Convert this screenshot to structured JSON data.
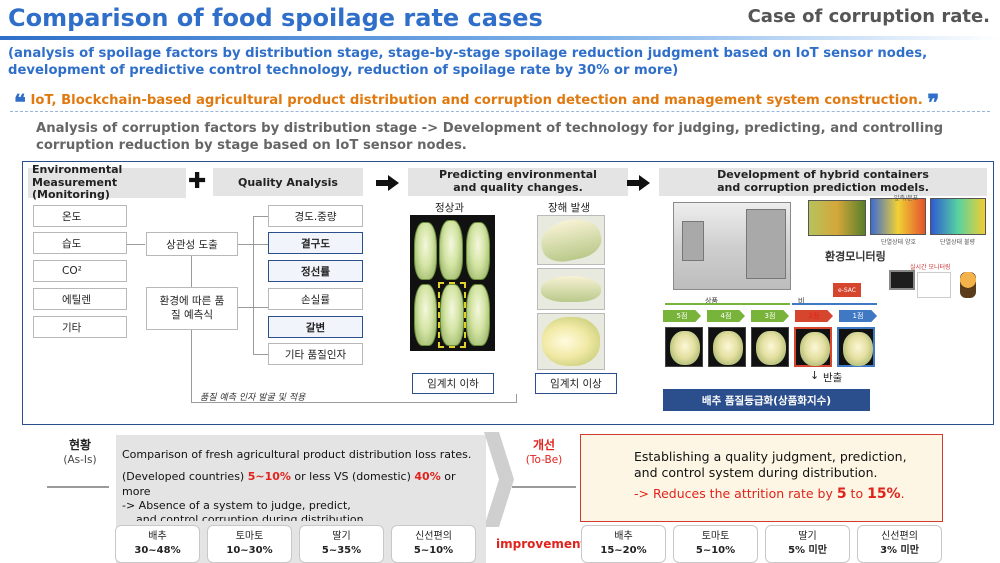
{
  "header": {
    "title": "Comparison of food spoilage rate cases",
    "case_label": "Case of corruption rate.",
    "subtitle_line1": "(analysis of spoilage factors by distribution stage, stage-by-stage spoilage reduction judgment based on IoT sensor nodes,",
    "subtitle_line2": "development of predictive control technology, reduction of spoilage rate by 30% or more)"
  },
  "quote": {
    "open_mark": "❝",
    "text": "IoT, Blockchain-based agricultural product distribution and corruption detection and management system construction.",
    "close_mark": "❞"
  },
  "description": {
    "line1": "Analysis of corruption factors by distribution stage -> Development of technology for judging, predicting, and controlling",
    "line2": "corruption reduction by stage based on IoT sensor nodes."
  },
  "flow": {
    "env_measure_title_1": "Environmental Measurement",
    "env_measure_title_2": "(Monitoring)",
    "quality_title": "Quality Analysis",
    "predict_title_1": "Predicting environmental",
    "predict_title_2": "and quality changes.",
    "hybrid_title_1": "Development of hybrid containers",
    "hybrid_title_2": "and corruption prediction models.",
    "env_factors": [
      "온도",
      "습도",
      "CO²",
      "에틸렌",
      "기타"
    ],
    "correlation": "상관성 도출",
    "quality_predict_1": "환경에 따른 품",
    "quality_predict_2": "질 예측식",
    "quality_factors": [
      {
        "label": "경도.중량",
        "highlight": false
      },
      {
        "label": "결구도",
        "highlight": true
      },
      {
        "label": "정선률",
        "highlight": true
      },
      {
        "label": "손실률",
        "highlight": false
      },
      {
        "label": "갈변",
        "highlight": true
      },
      {
        "label": "기타 품질인자",
        "highlight": false
      }
    ],
    "feedback_note": "품질 예측 인자 발굴 및 적용",
    "normal_label": "정상과",
    "damaged_label": "장해 발생",
    "below_threshold": "임계치 이하",
    "above_threshold": "임계치 이상",
    "monitor_label": "환경모니터링",
    "realtime_label": "실시간 모니터링",
    "thermal_label_1": "앞측/분포",
    "thermal_label_2": "단열상태 양호",
    "thermal_label_3": "단열상태 불량",
    "esac_label": "e-SAC",
    "product_label": "상품",
    "non_product_label": "비",
    "stages": [
      "5점",
      "4점",
      "3점",
      "2점",
      "1점"
    ],
    "return_label": "반출",
    "grade_bar": "배추 품질등급화(상품화지수)"
  },
  "as_is": {
    "heading": "현황",
    "sub": "(As-Is)",
    "line1": "Comparison of fresh agricultural product distribution loss rates.",
    "line2_a": "(Developed countries) ",
    "line2_b": "5~10%",
    "line2_c": " or less VS (domestic) ",
    "line2_d": "40%",
    "line2_e": " or more",
    "line3": "-> Absence of a system to judge, predict,",
    "line4": "and control corruption during distribution.",
    "stats": [
      {
        "name": "배추",
        "value": "30~48%"
      },
      {
        "name": "토마토",
        "value": "10~30%"
      },
      {
        "name": "딸기",
        "value": "5~35%"
      },
      {
        "name": "신선편의",
        "value": "5~10%"
      }
    ]
  },
  "to_be": {
    "heading": "개선",
    "sub": "(To-Be)",
    "line1": "Establishing a quality judgment, prediction,",
    "line2": "and control system during distribution.",
    "line3_a": "-> Reduces the attrition rate by ",
    "line3_b": "5",
    "line3_c": " to ",
    "line3_d": "15%",
    "line3_e": ".",
    "improvement": "improvement",
    "stats": [
      {
        "name": "배추",
        "value": "15~20%"
      },
      {
        "name": "토마토",
        "value": "5~10%"
      },
      {
        "name": "딸기",
        "value": "5% 미만"
      },
      {
        "name": "신선편의",
        "value": "3% 미만"
      }
    ]
  },
  "colors": {
    "title_blue": "#2f6fc9",
    "quote_orange": "#e07a10",
    "frame_navy": "#2b4f8c",
    "accent_red": "#e0231c"
  }
}
